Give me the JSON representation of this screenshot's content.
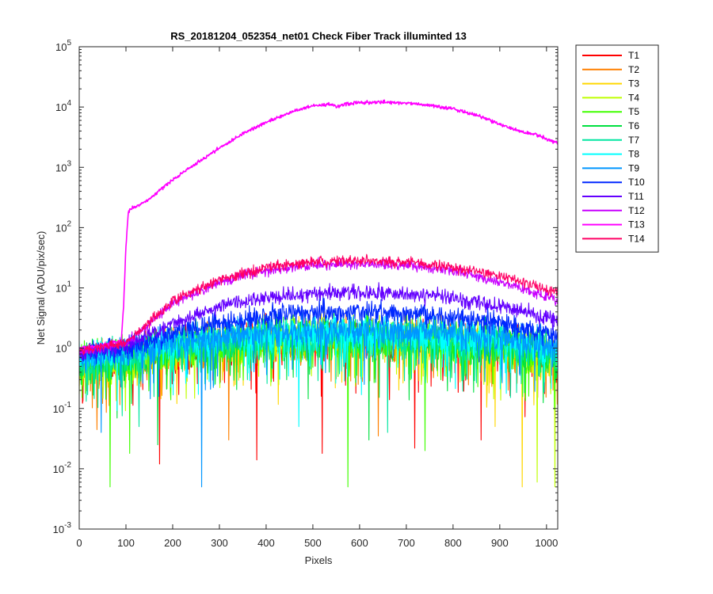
{
  "chart_data": {
    "type": "line",
    "title": "RS_20181204_052354_net01   Check Fiber     Track illuminted 13",
    "xlabel": "Pixels",
    "ylabel": "Net Signal (ADU/pix/sec)",
    "xlim": [
      0,
      1024
    ],
    "ylim": [
      0.001,
      100000
    ],
    "yscale": "log",
    "xticks": [
      0,
      100,
      200,
      300,
      400,
      500,
      600,
      700,
      800,
      900,
      1000
    ],
    "yticks": [
      {
        "value": 0.001,
        "mantissa": "10",
        "exponent": "-3"
      },
      {
        "value": 0.01,
        "mantissa": "10",
        "exponent": "-2"
      },
      {
        "value": 0.1,
        "mantissa": "10",
        "exponent": "-1"
      },
      {
        "value": 1,
        "mantissa": "10",
        "exponent": "0"
      },
      {
        "value": 10,
        "mantissa": "10",
        "exponent": "1"
      },
      {
        "value": 100,
        "mantissa": "10",
        "exponent": "2"
      },
      {
        "value": 1000,
        "mantissa": "10",
        "exponent": "3"
      },
      {
        "value": 10000,
        "mantissa": "10",
        "exponent": "4"
      },
      {
        "value": 100000,
        "mantissa": "10",
        "exponent": "5"
      }
    ],
    "grid": false,
    "legend_position": "outside-top-right",
    "series": [
      {
        "name": "T1",
        "color": "#ff0000",
        "profile": {
          "x": [
            0,
            100,
            200,
            300,
            400,
            500,
            550,
            600,
            700,
            800,
            900,
            1024
          ],
          "y": [
            0.5,
            0.6,
            0.9,
            1.1,
            1.3,
            1.4,
            1.4,
            1.4,
            1.35,
            1.2,
            1.0,
            0.7
          ]
        },
        "noise": 0.25,
        "dips": [
          [
            172,
            0.012
          ],
          [
            380,
            0.014
          ],
          [
            520,
            0.018
          ],
          [
            718,
            0.022
          ],
          [
            860,
            0.03
          ]
        ]
      },
      {
        "name": "T2",
        "color": "#ff8000",
        "profile": {
          "x": [
            0,
            100,
            200,
            300,
            400,
            500,
            550,
            600,
            700,
            800,
            900,
            1024
          ],
          "y": [
            0.5,
            0.6,
            0.9,
            1.1,
            1.3,
            1.4,
            1.4,
            1.4,
            1.35,
            1.2,
            1.0,
            0.7
          ]
        },
        "noise": 0.25,
        "dips": [
          [
            320,
            0.03
          ],
          [
            640,
            0.035
          ]
        ]
      },
      {
        "name": "T3",
        "color": "#ffd700",
        "profile": {
          "x": [
            0,
            100,
            200,
            300,
            400,
            500,
            550,
            600,
            700,
            800,
            900,
            1024
          ],
          "y": [
            0.5,
            0.6,
            0.9,
            1.1,
            1.3,
            1.4,
            1.4,
            1.4,
            1.35,
            1.2,
            1.0,
            0.7
          ]
        },
        "noise": 0.25,
        "dips": [
          [
            948,
            0.005
          ],
          [
            890,
            0.05
          ]
        ]
      },
      {
        "name": "T4",
        "color": "#bfff00",
        "profile": {
          "x": [
            0,
            100,
            200,
            300,
            400,
            500,
            550,
            600,
            700,
            800,
            900,
            1024
          ],
          "y": [
            0.5,
            0.6,
            0.9,
            1.1,
            1.3,
            1.4,
            1.4,
            1.4,
            1.35,
            1.2,
            1.0,
            0.7
          ]
        },
        "noise": 0.25,
        "dips": [
          [
            980,
            0.006
          ],
          [
            1018,
            0.005
          ]
        ]
      },
      {
        "name": "T5",
        "color": "#40ff00",
        "profile": {
          "x": [
            0,
            100,
            200,
            300,
            400,
            500,
            550,
            600,
            700,
            800,
            900,
            1024
          ],
          "y": [
            0.55,
            0.65,
            0.95,
            1.15,
            1.35,
            1.45,
            1.45,
            1.45,
            1.4,
            1.25,
            1.05,
            0.75
          ]
        },
        "noise": 0.25,
        "dips": [
          [
            66,
            0.005
          ],
          [
            575,
            0.005
          ],
          [
            108,
            0.018
          ],
          [
            740,
            0.02
          ]
        ]
      },
      {
        "name": "T6",
        "color": "#00e040",
        "profile": {
          "x": [
            0,
            100,
            200,
            300,
            400,
            500,
            550,
            600,
            700,
            800,
            900,
            1024
          ],
          "y": [
            0.55,
            0.7,
            1.0,
            1.2,
            1.4,
            1.5,
            1.5,
            1.5,
            1.45,
            1.3,
            1.1,
            0.8
          ]
        },
        "noise": 0.25,
        "dips": [
          [
            168,
            0.025
          ],
          [
            620,
            0.03
          ]
        ]
      },
      {
        "name": "T7",
        "color": "#00e6a0",
        "profile": {
          "x": [
            0,
            100,
            200,
            300,
            400,
            500,
            550,
            600,
            700,
            800,
            900,
            1024
          ],
          "y": [
            0.6,
            0.75,
            1.05,
            1.3,
            1.5,
            1.6,
            1.6,
            1.6,
            1.55,
            1.4,
            1.2,
            0.85
          ]
        },
        "noise": 0.22,
        "dips": [
          [
            128,
            0.05
          ],
          [
            660,
            0.04
          ]
        ]
      },
      {
        "name": "T8",
        "color": "#00ffff",
        "profile": {
          "x": [
            0,
            100,
            200,
            300,
            400,
            500,
            550,
            600,
            700,
            800,
            900,
            1024
          ],
          "y": [
            0.7,
            0.85,
            1.2,
            1.45,
            1.65,
            1.75,
            1.75,
            1.75,
            1.7,
            1.55,
            1.3,
            0.95
          ]
        },
        "noise": 0.2,
        "dips": [
          [
            470,
            0.05
          ]
        ]
      },
      {
        "name": "T9",
        "color": "#0096ff",
        "profile": {
          "x": [
            0,
            100,
            200,
            300,
            400,
            500,
            550,
            600,
            700,
            800,
            900,
            1024
          ],
          "y": [
            0.75,
            0.9,
            1.3,
            1.6,
            1.85,
            2.0,
            2.0,
            2.0,
            1.95,
            1.8,
            1.5,
            1.05
          ]
        },
        "noise": 0.18,
        "dips": [
          [
            262,
            0.005
          ],
          [
            47,
            0.04
          ]
        ]
      },
      {
        "name": "T10",
        "color": "#0028ff",
        "profile": {
          "x": [
            0,
            100,
            200,
            300,
            400,
            500,
            550,
            600,
            700,
            800,
            900,
            1024
          ],
          "y": [
            0.8,
            1.0,
            1.7,
            2.6,
            3.4,
            3.9,
            4.0,
            4.0,
            3.8,
            3.3,
            2.6,
            1.7
          ]
        },
        "noise": 0.13,
        "dips": []
      },
      {
        "name": "T11",
        "color": "#6400ff",
        "profile": {
          "x": [
            0,
            100,
            200,
            300,
            400,
            500,
            550,
            600,
            700,
            800,
            900,
            1024
          ],
          "y": [
            0.85,
            1.1,
            2.6,
            4.8,
            6.8,
            8.2,
            8.5,
            8.5,
            8.0,
            6.7,
            4.9,
            2.9
          ]
        },
        "noise": 0.09,
        "dips": []
      },
      {
        "name": "T12",
        "color": "#c800ff",
        "profile": {
          "x": [
            0,
            100,
            200,
            300,
            400,
            500,
            550,
            600,
            700,
            800,
            900,
            1024
          ],
          "y": [
            0.9,
            1.2,
            5.5,
            12.5,
            19.5,
            24.0,
            25.0,
            25.0,
            23.5,
            19.0,
            13.0,
            6.0
          ]
        },
        "noise": 0.06,
        "dips": []
      },
      {
        "name": "T13",
        "color": "#ff00ff",
        "profile": {
          "x": [
            0,
            50,
            90,
            95,
            100,
            105,
            110,
            130,
            150,
            200,
            250,
            300,
            350,
            400,
            450,
            500,
            540,
            552,
            565,
            600,
            650,
            700,
            750,
            800,
            850,
            900,
            920,
            950,
            980,
            1024
          ],
          "y": [
            1.0,
            1.1,
            1.3,
            5,
            50,
            170,
            205,
            240,
            300,
            620,
            1150,
            2100,
            3600,
            5600,
            8000,
            10500,
            11000,
            10100,
            11000,
            11800,
            12100,
            11700,
            10600,
            9300,
            7300,
            5300,
            4500,
            3900,
            3400,
            2500
          ]
        },
        "noise": 0.02,
        "dips": []
      },
      {
        "name": "T14",
        "color": "#ff0064",
        "profile": {
          "x": [
            0,
            100,
            200,
            300,
            400,
            500,
            550,
            600,
            700,
            800,
            900,
            1024
          ],
          "y": [
            0.9,
            1.25,
            6.0,
            14.0,
            22.0,
            27.0,
            28.5,
            28.5,
            27.0,
            22.0,
            16.0,
            8.5
          ]
        },
        "noise": 0.06,
        "dips": []
      }
    ]
  }
}
